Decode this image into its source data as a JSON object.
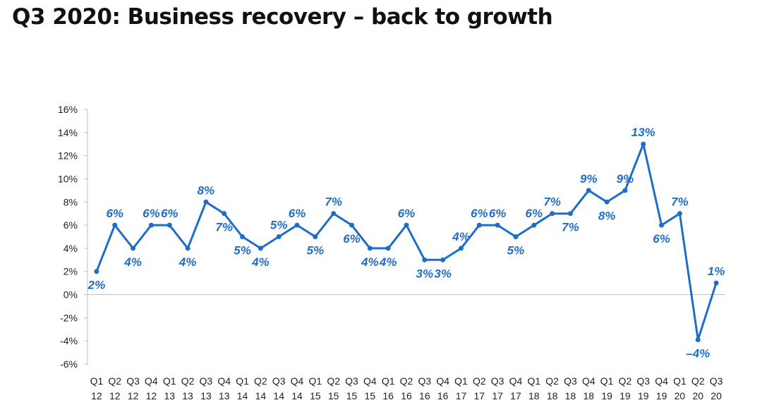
{
  "title": "Q3 2020: Business recovery – back to growth",
  "chart_data": {
    "type": "line",
    "title": "Q3 2020: Business recovery – back to growth",
    "xlabel": "",
    "ylabel": "",
    "ylim": [
      -6,
      16
    ],
    "y_ticks": [
      "16%",
      "14%",
      "12%",
      "10%",
      "8%",
      "6%",
      "4%",
      "2%",
      "0%",
      "-2%",
      "-4%",
      "-6%"
    ],
    "y_tick_values": [
      16,
      14,
      12,
      10,
      8,
      6,
      4,
      2,
      0,
      -2,
      -4,
      -6
    ],
    "grid": false,
    "line_color": "#1f6dc6",
    "categories": [
      "Q1 12",
      "Q2 12",
      "Q3 12",
      "Q4 12",
      "Q1 13",
      "Q2 13",
      "Q3 13",
      "Q4 13",
      "Q1 14",
      "Q2 14",
      "Q3 14",
      "Q4 14",
      "Q1 15",
      "Q2 15",
      "Q3 15",
      "Q4 15",
      "Q1 16",
      "Q2 16",
      "Q3 16",
      "Q4 16",
      "Q1 17",
      "Q2 17",
      "Q3 17",
      "Q4 17",
      "Q1 18",
      "Q2 18",
      "Q3 18",
      "Q4 18",
      "Q1 19",
      "Q2 19",
      "Q3 19",
      "Q4 19",
      "Q1 20",
      "Q2 20",
      "Q3 20"
    ],
    "values": [
      2,
      6,
      4,
      6,
      6,
      4,
      8,
      7,
      5,
      4,
      5,
      6,
      5,
      7,
      6,
      4,
      4,
      6,
      3,
      3,
      4,
      6,
      6,
      5,
      6,
      7,
      7,
      9,
      8,
      9,
      13,
      6,
      7,
      -3.9,
      1
    ],
    "data_labels": [
      "2%",
      "6%",
      "4%",
      "6%",
      "6%",
      "4%",
      "8%",
      "7%",
      "5%",
      "4%",
      "5%",
      "6%",
      "5%",
      "7%",
      "6%",
      "4%",
      "4%",
      "6%",
      "3%",
      "3%",
      "4%",
      "6%",
      "6%",
      "5%",
      "6%",
      "7%",
      "7%",
      "9%",
      "8%",
      "9%",
      "13%",
      "6%",
      "7%",
      "–4%",
      "1%"
    ]
  }
}
